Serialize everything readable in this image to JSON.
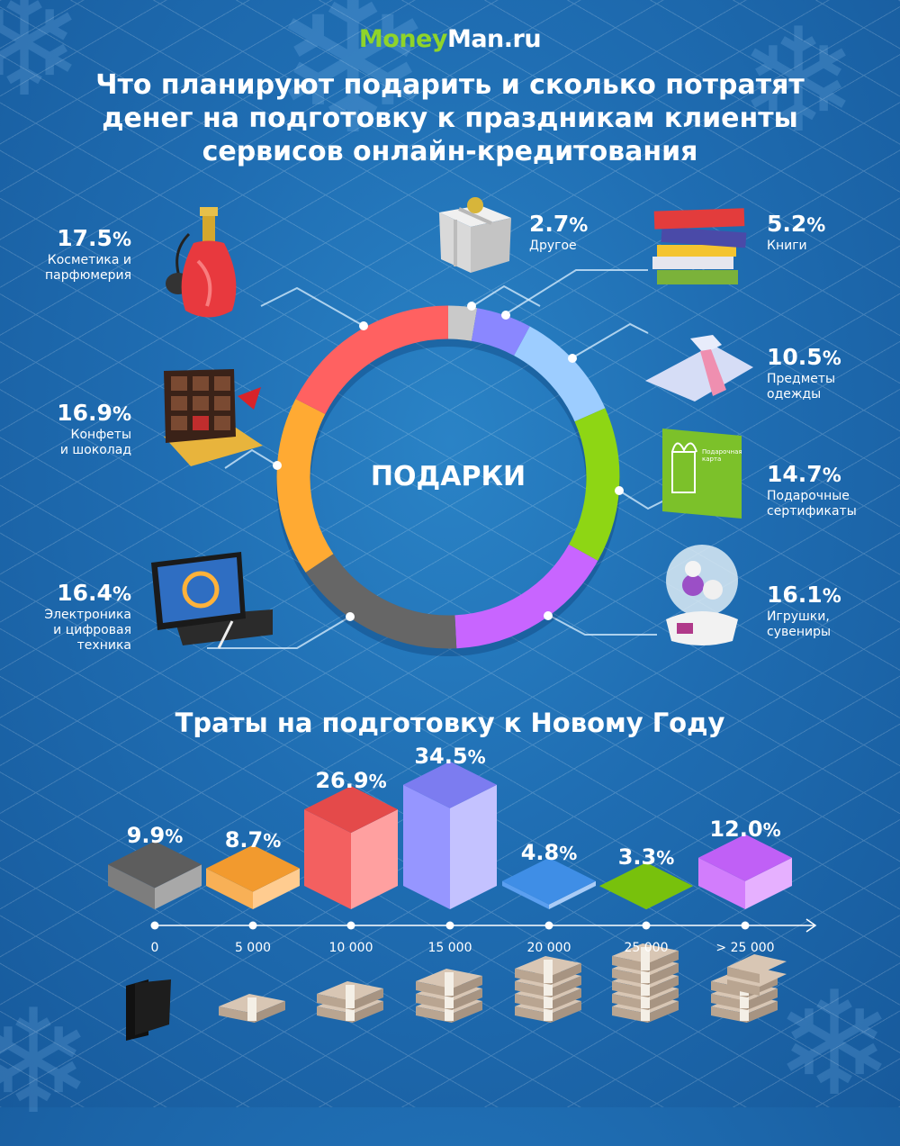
{
  "brand": {
    "part1": "Money",
    "part2": "Man.ru"
  },
  "title": {
    "line1": "Что планируют подарить и сколько потратят",
    "line2": "денег на подготовку к праздникам клиенты",
    "line3": "сервисов онлайн-кредитования"
  },
  "gifts": {
    "center_label": "ПОДАРКИ",
    "categories": [
      {
        "pct": "2.7",
        "label1": "Другое",
        "label2": "",
        "label3": "",
        "color": "#c9c9c9",
        "icon": "gift-box-icon"
      },
      {
        "pct": "5.2",
        "label1": "Книги",
        "label2": "",
        "label3": "",
        "color": "#8a87ff",
        "icon": "books-icon"
      },
      {
        "pct": "10.5",
        "label1": "Предметы",
        "label2": "одежды",
        "label3": "",
        "color": "#9dcdff",
        "icon": "shirt-tie-icon"
      },
      {
        "pct": "14.7",
        "label1": "Подарочные",
        "label2": "сертификаты",
        "label3": "",
        "color": "#8ed614",
        "icon": "gift-card-icon"
      },
      {
        "pct": "16.1",
        "label1": "Игрушки,",
        "label2": "сувениры",
        "label3": "",
        "color": "#c865ff",
        "icon": "snow-globe-icon"
      },
      {
        "pct": "16.4",
        "label1": "Электроника",
        "label2": "и цифровая",
        "label3": "техника",
        "color": "#666666",
        "icon": "tablet-icon"
      },
      {
        "pct": "16.9",
        "label1": "Конфеты",
        "label2": "и шоколад",
        "label3": "",
        "color": "#ffaa33",
        "icon": "chocolate-box-icon"
      },
      {
        "pct": "17.5",
        "label1": "Косметика и",
        "label2": "парфюмерия",
        "label3": "",
        "color": "#ff6161",
        "icon": "perfume-icon"
      }
    ],
    "gift_card_text": "Подарочная карта"
  },
  "spending": {
    "title": "Траты на подготовку к Новому Году",
    "percent_sign": "%",
    "bars": [
      {
        "pct": "9.9",
        "tick": "0",
        "top": "#5d5d5d",
        "left": "#7d7d7d",
        "right": "#a8a8a8",
        "icon": "wallet-icon"
      },
      {
        "pct": "8.7",
        "tick": "5 000",
        "top": "#f29a2e",
        "left": "#f8b056",
        "right": "#ffcc90",
        "icon": "money-stack-1-icon"
      },
      {
        "pct": "26.9",
        "tick": "10 000",
        "top": "#e44a4a",
        "left": "#f36060",
        "right": "#ffa0a0",
        "icon": "money-stack-2-icon"
      },
      {
        "pct": "34.5",
        "tick": "15 000",
        "top": "#7c7cf0",
        "left": "#9696ff",
        "right": "#c4c2ff",
        "icon": "money-stack-3-icon"
      },
      {
        "pct": "4.8",
        "tick": "20 000",
        "top": "#3f8ee6",
        "left": "#5b9ff0",
        "right": "#a9ccf7",
        "icon": "money-stack-4-icon"
      },
      {
        "pct": "3.3",
        "tick": "25 000",
        "top": "#78c10c",
        "left": "#90d42a",
        "right": "#c4ec88",
        "icon": "money-stack-5-icon"
      },
      {
        "pct": "12.0",
        "tick": "> 25 000",
        "top": "#c060f6",
        "left": "#d27dfc",
        "right": "#e6b0ff",
        "icon": "money-stack-6-icon"
      }
    ]
  },
  "chart_data": [
    {
      "type": "pie",
      "title": "ПОДАРКИ",
      "subtitle": "Что планируют подарить клиенты сервисов онлайн-кредитования",
      "categories": [
        "Другое",
        "Книги",
        "Предметы одежды",
        "Подарочные сертификаты",
        "Игрушки, сувениры",
        "Электроника и цифровая техника",
        "Конфеты и шоколад",
        "Косметика и парфюмерия"
      ],
      "values": [
        2.7,
        5.2,
        10.5,
        14.7,
        16.1,
        16.4,
        16.9,
        17.5
      ],
      "colors": [
        "#c9c9c9",
        "#8a87ff",
        "#9dcdff",
        "#8ed614",
        "#c865ff",
        "#666666",
        "#ffaa33",
        "#ff6161"
      ],
      "unit": "%",
      "style": "donut, clockwise from 12 o'clock"
    },
    {
      "type": "bar",
      "title": "Траты на подготовку к Новому Году",
      "categories": [
        "0",
        "5 000",
        "10 000",
        "15 000",
        "20 000",
        "25 000",
        "> 25 000"
      ],
      "values": [
        9.9,
        8.7,
        26.9,
        34.5,
        4.8,
        3.3,
        12.0
      ],
      "xlabel": "",
      "ylabel": "%",
      "ylim": [
        0,
        40
      ],
      "grid": false,
      "style": "isometric 3D bars, value labels on top"
    }
  ]
}
